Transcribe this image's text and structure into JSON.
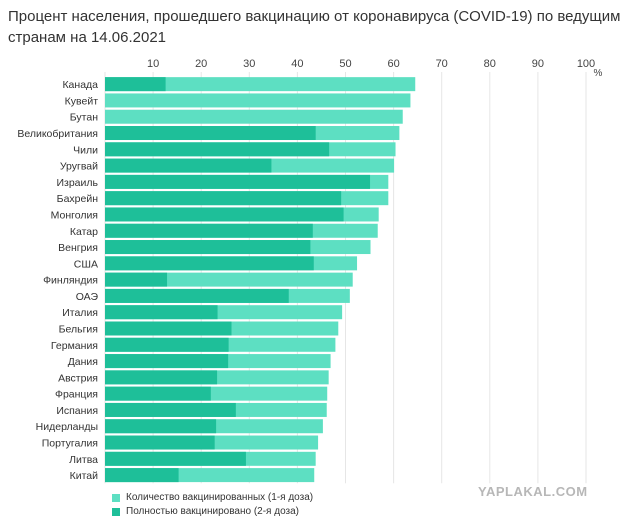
{
  "title": "Процент населения, прошедшего вакцинацию от коронавируса (COVID-19) по ведущим странам на 14.06.2021",
  "colors": {
    "first_dose": "#5ddfc2",
    "full": "#1ebf99",
    "grid": "#e6e6e6"
  },
  "legend": {
    "first_dose": "Количество вакцинированных (1-я доза)",
    "full": "Полностью вакцинировано (2-я доза)"
  },
  "watermark": "YAPLAKAL.COM",
  "chart_data": {
    "type": "bar",
    "orientation": "horizontal",
    "stacked": false,
    "x_ticks": [
      10,
      20,
      30,
      40,
      50,
      60,
      70,
      80,
      90,
      100
    ],
    "x_unit": "%",
    "xlim": [
      0,
      100
    ],
    "grid": true,
    "legend_position": "bottom-left",
    "categories": [
      "Канада",
      "Кувейт",
      "Бутан",
      "Великобритания",
      "Чили",
      "Уругвай",
      "Израиль",
      "Бахрейн",
      "Монголия",
      "Катар",
      "Венгрия",
      "США",
      "Финляндия",
      "ОАЭ",
      "Италия",
      "Бельгия",
      "Германия",
      "Дания",
      "Австрия",
      "Франция",
      "Испания",
      "Нидерланды",
      "Португалия",
      "Литва",
      "Китай"
    ],
    "series": [
      {
        "name": "Количество вакцинированных (1-я доза)",
        "values": [
          64.5,
          63.5,
          61.9,
          61.2,
          60.4,
          60.1,
          58.9,
          58.9,
          56.9,
          56.7,
          55.2,
          52.4,
          51.5,
          50.9,
          49.3,
          48.5,
          47.9,
          46.9,
          46.5,
          46.2,
          46.1,
          45.3,
          44.3,
          43.8,
          43.5
        ]
      },
      {
        "name": "Полностью вакцинировано (2-я доза)",
        "values": [
          12.6,
          0,
          0,
          43.8,
          46.6,
          34.6,
          55.1,
          49.1,
          49.6,
          43.2,
          42.7,
          43.4,
          12.9,
          38.2,
          23.4,
          26.3,
          25.7,
          25.6,
          23.3,
          22.0,
          27.2,
          23.1,
          22.8,
          29.3,
          15.3
        ]
      }
    ]
  }
}
